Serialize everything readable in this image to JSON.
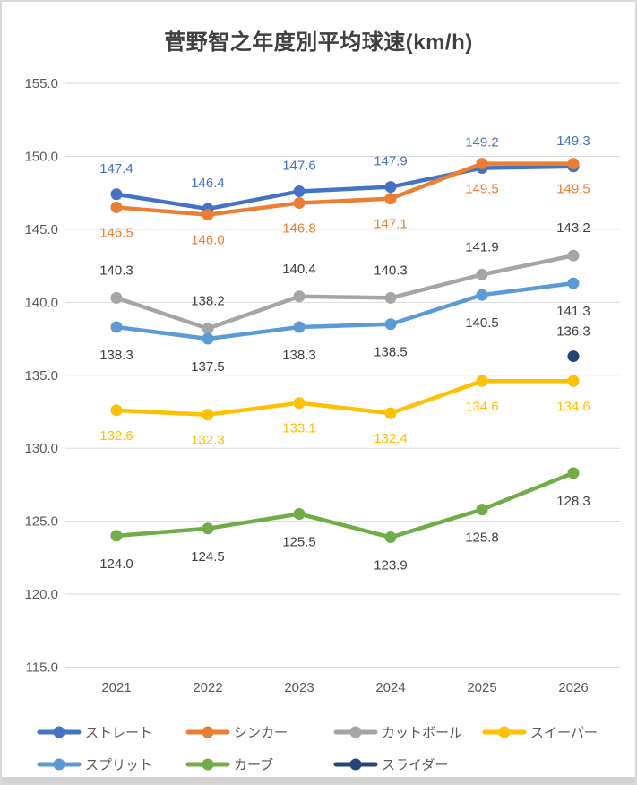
{
  "title": "菅野智之年度別平均球速(km/h)",
  "colors": {
    "gridline": "#D9D9D9",
    "axis_text": "#595959",
    "legend_text": "#595959",
    "title_text": "#404040",
    "border": "#D9D9D9",
    "bottom_strip": "#D2D2D2",
    "background": "#FFFFFF"
  },
  "chart_data": {
    "type": "line",
    "title": "菅野智之年度別平均球速(km/h)",
    "categories": [
      "2021",
      "2022",
      "2023",
      "2024",
      "2025",
      "2026"
    ],
    "ylim": [
      115.0,
      155.0
    ],
    "ytick_step": 5.0,
    "ytick_labels": [
      "155.0",
      "150.0",
      "145.0",
      "140.0",
      "135.0",
      "130.0",
      "125.0",
      "120.0",
      "115.0"
    ],
    "grid": true,
    "legend_position": "bottom",
    "series": [
      {
        "id": "straight",
        "name": "ストレート",
        "color": "#4472C4",
        "label_color": "#4472C4",
        "label_dy": -29,
        "values": [
          147.4,
          146.4,
          147.6,
          147.9,
          149.2,
          149.3
        ]
      },
      {
        "id": "sinker",
        "name": "シンカー",
        "color": "#ED7D31",
        "label_color": "#ED7D31",
        "label_dy": 28,
        "values": [
          146.5,
          146.0,
          146.8,
          147.1,
          149.5,
          149.5
        ]
      },
      {
        "id": "cutter",
        "name": "カットボール",
        "color": "#A5A5A5",
        "label_color": "#404040",
        "label_dy": -31,
        "values": [
          140.3,
          138.2,
          140.4,
          140.3,
          141.9,
          143.2
        ]
      },
      {
        "id": "sweeper",
        "name": "スイーパー",
        "color": "#FFC000",
        "label_color": "#FFC000",
        "label_dy": 28,
        "values": [
          132.6,
          132.3,
          133.1,
          132.4,
          134.6,
          134.6
        ]
      },
      {
        "id": "split",
        "name": "スプリット",
        "color": "#5B9BD5",
        "label_color": "#404040",
        "label_dy": 31,
        "values": [
          138.3,
          137.5,
          138.3,
          138.5,
          140.5,
          141.3
        ]
      },
      {
        "id": "curve",
        "name": "カーブ",
        "color": "#70AD47",
        "label_color": "#404040",
        "label_dy": 31,
        "values": [
          124.0,
          124.5,
          125.5,
          123.9,
          125.8,
          128.3
        ]
      },
      {
        "id": "slider",
        "name": "スライダー",
        "color": "#264478",
        "label_color": "#404040",
        "label_dy": -28,
        "values": [
          null,
          null,
          null,
          null,
          null,
          136.3
        ]
      }
    ]
  }
}
